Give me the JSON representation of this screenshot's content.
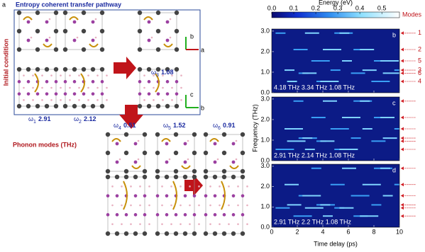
{
  "figure": {
    "panel_label": "a",
    "title": "Entropy coherent transfer pathway",
    "side_label": "Initial condition",
    "phonon_label": "Phonon modes (THz)",
    "axis_letters": [
      "b",
      "a",
      "c",
      "b"
    ],
    "omegas": [
      {
        "symbol": "ω",
        "sub": "3",
        "value": 1.08
      },
      {
        "symbol": "ω",
        "sub": "1",
        "value": 2.91
      },
      {
        "symbol": "ω",
        "sub": "2",
        "value": 2.12
      },
      {
        "symbol": "ω",
        "sub": "4",
        "value": 0.51
      },
      {
        "symbol": "ω",
        "sub": "5",
        "value": 1.52
      },
      {
        "symbol": "ω",
        "sub": "6",
        "value": 0.91
      }
    ]
  },
  "heatmap": {
    "colorbar_title": "Energy (eV)",
    "colorbar_lim": [
      0,
      0.58
    ],
    "colorbar_ticks": [
      {
        "value": 0,
        "label": "0.0"
      },
      0.1,
      0.2,
      0.3,
      0.4,
      0.5
    ],
    "modes_title": "Modes",
    "ylabel": "Frequency (THz)",
    "xlabel": "Time delay (ps)",
    "xlim": [
      0,
      10
    ],
    "xticks": [
      0,
      2,
      4,
      6,
      8,
      10
    ],
    "ylim": [
      0,
      3.1
    ],
    "yticks": [
      {
        "value": 0,
        "label": "0.0"
      },
      {
        "value": 1,
        "label": "1.0"
      },
      {
        "value": 2,
        "label": "2.0"
      },
      {
        "value": 3,
        "label": "3.0"
      }
    ],
    "panels": [
      {
        "label": "b",
        "note": "4.18 THz 3.34 THz 1.08 THz"
      },
      {
        "label": "c",
        "note": "2.91 THz 2.14 THz 1.08 THz"
      },
      {
        "label": "d",
        "note": "2.91 THz 2.2 THz 1.08 THz"
      }
    ],
    "modes": [
      {
        "label": "1",
        "frequency": 2.9
      },
      {
        "label": "2",
        "frequency": 2.1
      },
      {
        "label": "5",
        "frequency": 1.55
      },
      {
        "label": "3",
        "frequency": 1.1
      },
      {
        "label": "6",
        "frequency": 0.95
      },
      {
        "label": "4",
        "frequency": 0.55
      }
    ]
  }
}
